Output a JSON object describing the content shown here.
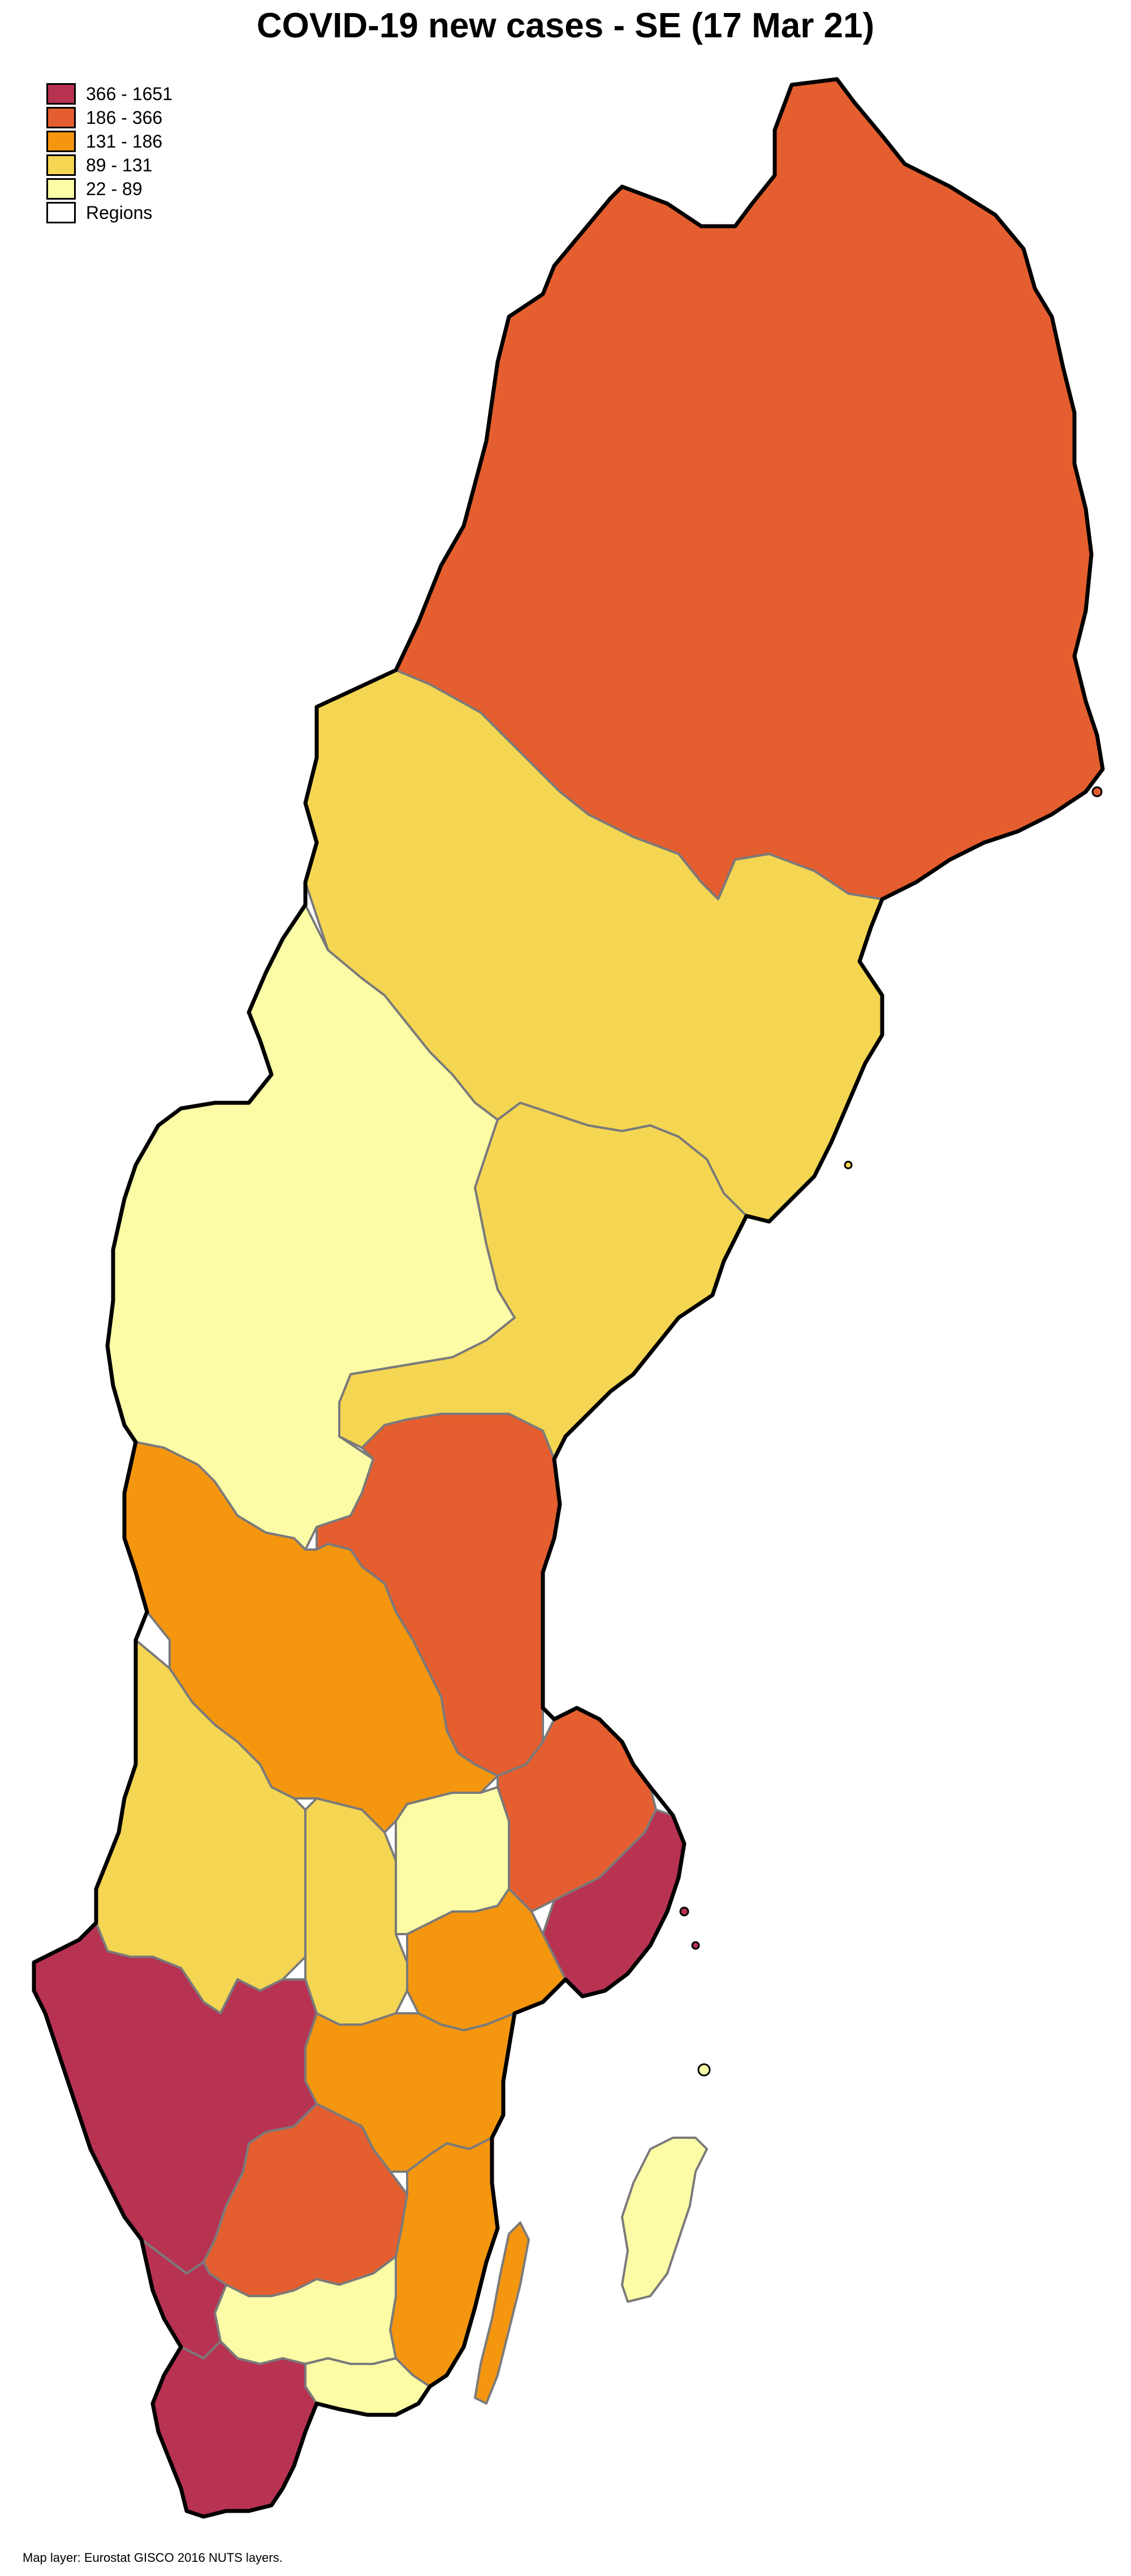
{
  "title": "COVID-19 new cases - SE (17 Mar 21)",
  "legend": {
    "items": [
      {
        "label": "366 - 1651",
        "color": "#b83252"
      },
      {
        "label": "186 - 366",
        "color": "#e55e2f"
      },
      {
        "label": "131 - 186",
        "color": "#f5960f"
      },
      {
        "label": "89 - 131",
        "color": "#f5d652"
      },
      {
        "label": "22 - 89",
        "color": "#fcfca6"
      },
      {
        "label": "Regions",
        "color": "#ffffff"
      }
    ]
  },
  "credit": "Map layer: Eurostat GISCO 2016 NUTS layers.",
  "regions": [
    {
      "name": "Norrbotten",
      "class": "186 - 366"
    },
    {
      "name": "Västerbotten",
      "class": "89 - 131"
    },
    {
      "name": "Jämtland",
      "class": "22 - 89"
    },
    {
      "name": "Västernorrland",
      "class": "89 - 131"
    },
    {
      "name": "Gävleborg",
      "class": "186 - 366"
    },
    {
      "name": "Dalarna",
      "class": "131 - 186"
    },
    {
      "name": "Värmland",
      "class": "89 - 131"
    },
    {
      "name": "Uppsala",
      "class": "186 - 366"
    },
    {
      "name": "Västmanland",
      "class": "22 - 89"
    },
    {
      "name": "Örebro",
      "class": "89 - 131"
    },
    {
      "name": "Stockholm",
      "class": "366 - 1651"
    },
    {
      "name": "Södermanland",
      "class": "131 - 186"
    },
    {
      "name": "Östergötland",
      "class": "131 - 186"
    },
    {
      "name": "Västra Götaland",
      "class": "366 - 1651"
    },
    {
      "name": "Jönköping",
      "class": "186 - 366"
    },
    {
      "name": "Kalmar",
      "class": "131 - 186"
    },
    {
      "name": "Kronoberg",
      "class": "22 - 89"
    },
    {
      "name": "Halland",
      "class": "366 - 1651"
    },
    {
      "name": "Blekinge",
      "class": "22 - 89"
    },
    {
      "name": "Skåne",
      "class": "366 - 1651"
    },
    {
      "name": "Gotland",
      "class": "22 - 89"
    },
    {
      "name": "Öland",
      "class": "131 - 186"
    }
  ]
}
